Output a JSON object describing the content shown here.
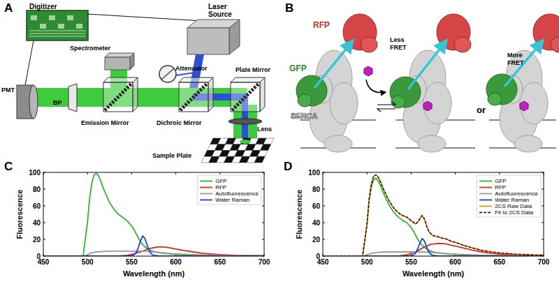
{
  "panel_a": {
    "label": "A",
    "digitizer": "Digitizer",
    "laser_source": "Laser Source",
    "spectrometer": "Spectrometer",
    "pmt": "PMT",
    "bp": "BP",
    "emission_mirror": "Emission Mirror",
    "dichroic_mirror": "Dichroic Mirror",
    "attenuator": "Attenuator",
    "plate_mirror": "Plate Mirror",
    "lens": "Lens",
    "sample_plate": "Sample Plate"
  },
  "panel_b": {
    "label": "B",
    "rfp": "RFP",
    "gfp": "GFP",
    "serca": "SERCA",
    "less_fret": "Less FRET",
    "more_fret": "More FRET",
    "or": "or"
  },
  "chart_data": [
    {
      "type": "line",
      "label": "C",
      "x_label": "Wavelength (nm)",
      "y_label": "Fluorescence",
      "x": [
        450,
        460,
        470,
        480,
        490,
        495,
        500,
        502.5,
        505,
        507.5,
        510,
        512.5,
        515,
        517.5,
        520,
        525,
        530,
        535,
        540,
        545,
        550,
        552.5,
        555,
        557.5,
        560,
        562.5,
        565,
        567.5,
        570,
        572.5,
        575,
        580,
        585,
        590,
        595,
        600,
        610,
        620,
        630,
        640,
        650,
        660,
        670,
        680,
        690,
        700
      ],
      "xlim": [
        450,
        700
      ],
      "xticks": [
        450,
        500,
        550,
        600,
        650,
        700
      ],
      "ylim": [
        0,
        100
      ],
      "yticks": [
        0,
        20,
        40,
        60,
        80,
        100
      ],
      "grid": false,
      "legend": "upper-right",
      "series": [
        {
          "name": "GFP",
          "color": "#2db82d",
          "values": [
            0,
            0,
            0,
            0,
            0,
            0,
            40,
            70,
            88,
            97,
            99,
            96,
            90,
            82,
            76,
            64,
            56,
            50,
            46,
            42,
            36,
            32,
            27,
            22,
            17,
            14,
            11,
            9,
            7.5,
            6.5,
            5.5,
            4.5,
            3.5,
            3,
            2.5,
            2,
            1.5,
            1,
            0.8,
            0.6,
            0.5,
            0.4,
            0.3,
            0.2,
            0.2,
            0.1
          ]
        },
        {
          "name": "RFP",
          "color": "#e02828",
          "values": [
            0,
            0,
            0,
            0,
            0,
            0,
            0,
            0,
            0,
            0,
            0,
            0,
            0,
            0,
            0,
            0,
            0,
            0,
            0.5,
            1,
            2,
            2.5,
            3.5,
            4.5,
            5,
            6,
            7,
            8,
            9,
            9.5,
            10,
            11,
            11,
            10.5,
            9.5,
            8.5,
            6.5,
            5,
            3.5,
            2.5,
            1.8,
            1.3,
            1,
            0.8,
            0.6,
            0.5
          ]
        },
        {
          "name": "Autofluorescence",
          "color": "#999999",
          "values": [
            0,
            0,
            0,
            0,
            0,
            0,
            1.5,
            3,
            4,
            4.5,
            5,
            5.2,
            5.4,
            5.6,
            5.8,
            6,
            6,
            6,
            6,
            6,
            6,
            6,
            6,
            6,
            6,
            6,
            5.8,
            5.6,
            5.4,
            5.2,
            5,
            4.5,
            4,
            3.5,
            3,
            2.7,
            2.2,
            1.8,
            1.5,
            1.2,
            1,
            0.8,
            0.7,
            0.6,
            0.5,
            0.5
          ]
        },
        {
          "name": "Water Raman",
          "color": "#1a3fe0",
          "values": [
            0,
            0,
            0,
            0,
            0,
            0,
            0,
            0,
            0,
            0,
            0,
            0,
            0,
            0,
            0,
            0,
            0,
            0,
            0,
            0,
            0.5,
            1.5,
            4,
            10,
            18,
            24,
            21,
            13,
            6,
            2.5,
            1,
            0.3,
            0,
            0,
            0,
            0,
            0,
            0,
            0,
            0,
            0,
            0,
            0,
            0,
            0,
            0
          ]
        }
      ]
    },
    {
      "type": "line",
      "label": "D",
      "x_label": "Wavelength (nm)",
      "y_label": "Fluorescence",
      "x": [
        450,
        460,
        470,
        480,
        490,
        495,
        500,
        502.5,
        505,
        507.5,
        510,
        512.5,
        515,
        517.5,
        520,
        525,
        530,
        535,
        540,
        545,
        550,
        552.5,
        555,
        557.5,
        560,
        562.5,
        565,
        567.5,
        570,
        572.5,
        575,
        580,
        585,
        590,
        595,
        600,
        610,
        620,
        630,
        640,
        650,
        660,
        670,
        680,
        690,
        700
      ],
      "xlim": [
        450,
        700
      ],
      "xticks": [
        450,
        500,
        550,
        600,
        650,
        700
      ],
      "ylim": [
        0,
        100
      ],
      "yticks": [
        0,
        20,
        40,
        60,
        80,
        100
      ],
      "grid": false,
      "legend": "upper-right",
      "series": [
        {
          "name": "GFP",
          "color": "#2db82d",
          "values": [
            0,
            0,
            0,
            0,
            0,
            0,
            37,
            66,
            83,
            91,
            93,
            90,
            85,
            78,
            72,
            61,
            53,
            47,
            43,
            40,
            34,
            30,
            25,
            20,
            16,
            13,
            10.5,
            8.5,
            7,
            6,
            5,
            4,
            3.2,
            2.8,
            2.3,
            1.9,
            1.4,
            1,
            0.8,
            0.6,
            0.5,
            0.4,
            0.3,
            0.2,
            0.2,
            0.1
          ]
        },
        {
          "name": "RFP",
          "color": "#e02828",
          "values": [
            0,
            0,
            0,
            0,
            0,
            0,
            0,
            0,
            0,
            0,
            0,
            0,
            0,
            0,
            0,
            0,
            0,
            0,
            0.7,
            1.5,
            3,
            4,
            5,
            6.5,
            8,
            9.5,
            11,
            12,
            13,
            14,
            14.5,
            15,
            15,
            14.5,
            13,
            12,
            9.5,
            7,
            5,
            3.5,
            2.5,
            1.8,
            1.3,
            1,
            0.8,
            0.6
          ]
        },
        {
          "name": "Autofluorescence",
          "color": "#999999",
          "values": [
            0,
            0,
            0,
            0,
            0,
            0,
            1.2,
            2.5,
            3.3,
            3.8,
            4.2,
            4.4,
            4.6,
            4.8,
            4.9,
            5,
            5,
            5,
            5,
            5,
            5,
            5,
            5,
            5,
            5,
            5,
            4.9,
            4.8,
            4.6,
            4.4,
            4.2,
            3.8,
            3.4,
            3,
            2.6,
            2.3,
            1.9,
            1.5,
            1.2,
            1,
            0.8,
            0.7,
            0.6,
            0.5,
            0.4,
            0.4
          ]
        },
        {
          "name": "Water Raman",
          "color": "#1a3fe0",
          "values": [
            0,
            0,
            0,
            0,
            0,
            0,
            0,
            0,
            0,
            0,
            0,
            0,
            0,
            0,
            0,
            0,
            0,
            0,
            0,
            0,
            0.4,
            1.3,
            3.5,
            9,
            16,
            21,
            18,
            11,
            5,
            2,
            0.8,
            0.2,
            0,
            0,
            0,
            0,
            0,
            0,
            0,
            0,
            0,
            0,
            0,
            0,
            0,
            0
          ]
        },
        {
          "name": "2CS Raw Data",
          "color": "#ff8c1a",
          "values": [
            0,
            0,
            0,
            0,
            0,
            0,
            37.5,
            69,
            87,
            95.5,
            96.8,
            94.9,
            89.2,
            83.1,
            76.5,
            66.3,
            57.6,
            52.4,
            48.3,
            46.9,
            42,
            40.6,
            38.2,
            40.9,
            44.6,
            48.9,
            44,
            36.6,
            29.2,
            26.8,
            24.2,
            23.4,
            21.3,
            20.6,
            17.6,
            16.5,
            12.6,
            9.8,
            6.8,
            5.3,
            3.6,
            3.1,
            2,
            1.9,
            1.2,
            1.3
          ]
        },
        {
          "name": "Fit to 2CS Data",
          "color": "#000000",
          "line_style": "dashed",
          "values": [
            0,
            0,
            0,
            0,
            0,
            0,
            38.2,
            68.5,
            86.3,
            94.8,
            97.2,
            94.4,
            89.6,
            82.8,
            76.9,
            66,
            58,
            52,
            48.7,
            46.5,
            42.4,
            40.3,
            38.5,
            40.5,
            45,
            48.5,
            44.4,
            36.3,
            29.6,
            26.4,
            24.5,
            23,
            21.6,
            20.3,
            17.9,
            16.2,
            12.8,
            9.5,
            7,
            5.1,
            3.8,
            2.9,
            2.2,
            1.7,
            1.4,
            1.1
          ]
        }
      ]
    }
  ]
}
